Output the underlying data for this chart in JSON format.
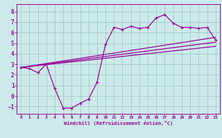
{
  "xlabel": "Windchill (Refroidissement éolien,°C)",
  "background_color": "#cceaea",
  "grid_color": "#aacccc",
  "line_color": "#990099",
  "xlim": [
    -0.5,
    23.5
  ],
  "ylim": [
    -1.7,
    8.7
  ],
  "xticks": [
    0,
    1,
    2,
    3,
    4,
    5,
    6,
    7,
    8,
    9,
    10,
    11,
    12,
    13,
    14,
    15,
    16,
    17,
    18,
    19,
    20,
    21,
    22,
    23
  ],
  "yticks": [
    -1,
    0,
    1,
    2,
    3,
    4,
    5,
    6,
    7,
    8
  ],
  "main_x": [
    0,
    1,
    2,
    3,
    4,
    5,
    6,
    7,
    8,
    9,
    10,
    11,
    12,
    13,
    14,
    15,
    16,
    17,
    18,
    19,
    20,
    21,
    22,
    23
  ],
  "main_y": [
    2.7,
    2.6,
    2.2,
    3.0,
    0.7,
    -1.15,
    -1.15,
    -0.7,
    -0.3,
    1.3,
    4.9,
    6.5,
    6.3,
    6.6,
    6.4,
    6.5,
    7.4,
    7.7,
    6.9,
    6.5,
    6.5,
    6.4,
    6.5,
    5.3
  ],
  "line1_x": [
    0,
    23
  ],
  "line1_y": [
    2.7,
    5.55
  ],
  "line2_x": [
    0,
    23
  ],
  "line2_y": [
    2.7,
    5.1
  ],
  "line3_x": [
    0,
    23
  ],
  "line3_y": [
    2.7,
    4.7
  ]
}
